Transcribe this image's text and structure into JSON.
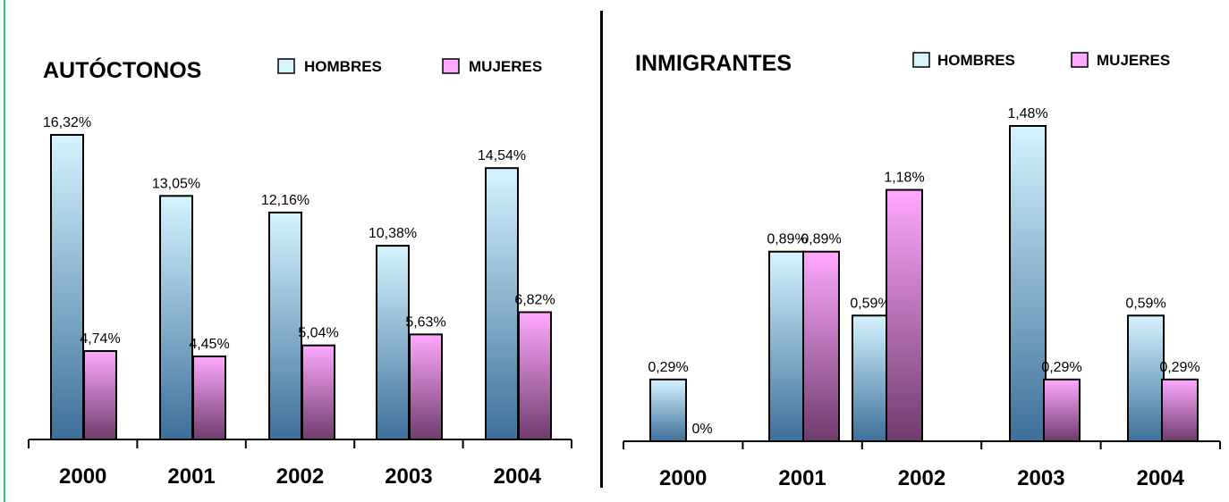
{
  "colors": {
    "edge": "#3cb878",
    "axis": "#000000",
    "hombres_top": "#d6f4ff",
    "hombres_bottom": "#3d6f9a",
    "mujeres_top": "#ffa8ff",
    "mujeres_bottom": "#6f3c6c"
  },
  "chart_data": [
    {
      "type": "bar",
      "title": "AUTÓCTONOS",
      "categories": [
        "2000",
        "2001",
        "2002",
        "2003",
        "2004"
      ],
      "series": [
        {
          "name": "HOMBRES",
          "values": [
            16.32,
            13.05,
            12.16,
            10.38,
            14.54
          ],
          "labels": [
            "16,32%",
            "13,05%",
            "12,16%",
            "10,38%",
            "14,54%"
          ]
        },
        {
          "name": "MUJERES",
          "values": [
            4.74,
            4.45,
            5.04,
            5.63,
            6.82
          ],
          "labels": [
            "4,74%",
            "4,45%",
            "5,04%",
            "5,63%",
            "6,82%"
          ]
        }
      ],
      "ylim": [
        0,
        16.32
      ],
      "grid": false,
      "legend_position": "top-right"
    },
    {
      "type": "bar",
      "title": "INMIGRANTES",
      "categories": [
        "2000",
        "2001",
        "2002",
        "2003",
        "2004"
      ],
      "series": [
        {
          "name": "HOMBRES",
          "values": [
            0.29,
            0.89,
            0.59,
            1.48,
            0.59
          ],
          "labels": [
            "0,29%",
            "0,89%",
            "0,59%",
            "1,48%",
            "0,59%"
          ]
        },
        {
          "name": "MUJERES",
          "values": [
            0,
            0.89,
            1.18,
            0.29,
            0.29
          ],
          "labels": [
            "0%",
            "0,89%",
            "1,18%",
            "0,29%",
            "0,29%"
          ]
        }
      ],
      "ylim": [
        0,
        1.48
      ],
      "grid": false,
      "legend_position": "top-right"
    }
  ]
}
